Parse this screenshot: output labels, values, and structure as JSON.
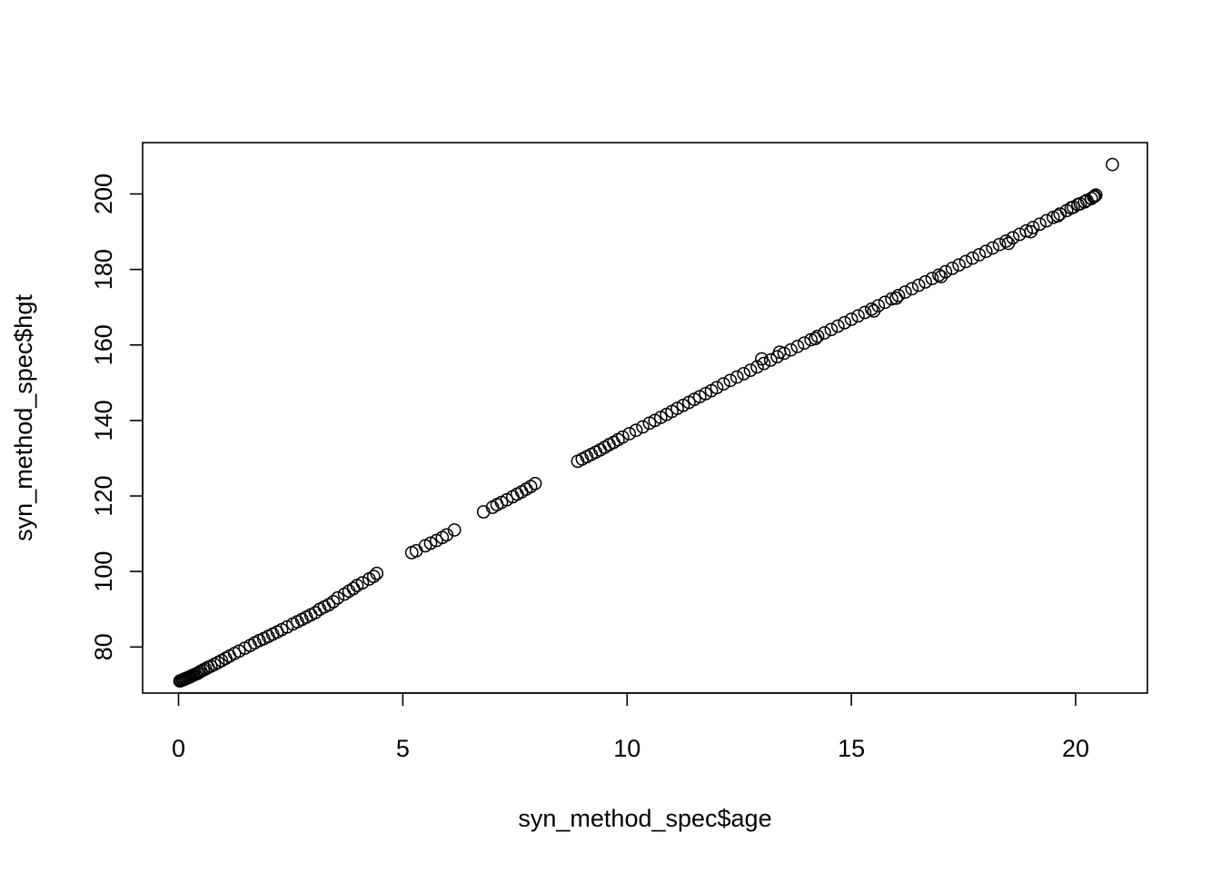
{
  "chart_data": {
    "type": "scatter",
    "title": "",
    "xlabel": "syn_method_spec$age",
    "ylabel": "syn_method_spec$hgt",
    "xlim": [
      -0.8,
      21.6
    ],
    "ylim": [
      67.8,
      213.6
    ],
    "x_ticks": [
      0,
      5,
      10,
      15,
      20
    ],
    "x_tick_labels": [
      "0",
      "5",
      "10",
      "15",
      "20"
    ],
    "y_ticks": [
      80,
      100,
      120,
      140,
      160,
      180,
      200
    ],
    "y_tick_labels": [
      "80",
      "100",
      "120",
      "140",
      "160",
      "180",
      "200"
    ],
    "grid": false,
    "marker": "open-circle",
    "point_color": "#000000",
    "points": [
      [
        0.03,
        71.0
      ],
      [
        0.06,
        71.1
      ],
      [
        0.09,
        71.3
      ],
      [
        0.12,
        71.4
      ],
      [
        0.15,
        71.6
      ],
      [
        0.18,
        71.7
      ],
      [
        0.21,
        71.9
      ],
      [
        0.24,
        72.0
      ],
      [
        0.27,
        72.2
      ],
      [
        0.3,
        72.4
      ],
      [
        0.34,
        72.6
      ],
      [
        0.38,
        72.8
      ],
      [
        0.42,
        73.0
      ],
      [
        0.46,
        73.3
      ],
      [
        0.5,
        73.6
      ],
      [
        0.55,
        73.9
      ],
      [
        0.6,
        74.2
      ],
      [
        0.66,
        74.6
      ],
      [
        0.72,
        74.9
      ],
      [
        0.8,
        75.4
      ],
      [
        0.88,
        75.9
      ],
      [
        0.96,
        76.4
      ],
      [
        1.05,
        77.0
      ],
      [
        1.14,
        77.6
      ],
      [
        1.25,
        78.3
      ],
      [
        1.35,
        78.9
      ],
      [
        1.48,
        79.7
      ],
      [
        1.6,
        80.4
      ],
      [
        1.7,
        81.1
      ],
      [
        1.8,
        81.7
      ],
      [
        1.9,
        82.2
      ],
      [
        2.0,
        82.8
      ],
      [
        2.1,
        83.4
      ],
      [
        2.2,
        84.0
      ],
      [
        2.3,
        84.6
      ],
      [
        2.42,
        85.3
      ],
      [
        2.55,
        86.1
      ],
      [
        2.65,
        86.7
      ],
      [
        2.75,
        87.3
      ],
      [
        2.85,
        87.9
      ],
      [
        2.95,
        88.5
      ],
      [
        3.05,
        89.1
      ],
      [
        3.15,
        90.0
      ],
      [
        3.25,
        90.6
      ],
      [
        3.35,
        91.2
      ],
      [
        3.45,
        92.0
      ],
      [
        3.55,
        93.0
      ],
      [
        3.7,
        94.0
      ],
      [
        3.8,
        94.8
      ],
      [
        3.9,
        95.5
      ],
      [
        3.98,
        96.3
      ],
      [
        4.1,
        97.0
      ],
      [
        4.25,
        98.0
      ],
      [
        4.35,
        98.7
      ],
      [
        4.42,
        99.5
      ],
      [
        5.2,
        105.0
      ],
      [
        5.3,
        105.5
      ],
      [
        5.5,
        106.8
      ],
      [
        5.62,
        107.5
      ],
      [
        5.75,
        108.2
      ],
      [
        5.88,
        109.0
      ],
      [
        5.98,
        109.7
      ],
      [
        6.15,
        111.0
      ],
      [
        6.8,
        115.8
      ],
      [
        7.0,
        117.0
      ],
      [
        7.1,
        117.7
      ],
      [
        7.2,
        118.3
      ],
      [
        7.32,
        119.0
      ],
      [
        7.45,
        119.8
      ],
      [
        7.55,
        120.5
      ],
      [
        7.65,
        121.1
      ],
      [
        7.75,
        121.8
      ],
      [
        7.85,
        122.5
      ],
      [
        7.95,
        123.3
      ],
      [
        8.9,
        129.2
      ],
      [
        9.0,
        129.8
      ],
      [
        9.1,
        130.4
      ],
      [
        9.2,
        131.0
      ],
      [
        9.3,
        131.6
      ],
      [
        9.4,
        132.2
      ],
      [
        9.5,
        132.9
      ],
      [
        9.6,
        133.6
      ],
      [
        9.7,
        134.2
      ],
      [
        9.8,
        134.9
      ],
      [
        9.9,
        135.6
      ],
      [
        10.05,
        136.5
      ],
      [
        10.2,
        137.4
      ],
      [
        10.35,
        138.3
      ],
      [
        10.5,
        139.3
      ],
      [
        10.62,
        140.0
      ],
      [
        10.75,
        140.8
      ],
      [
        10.88,
        141.6
      ],
      [
        11.0,
        142.4
      ],
      [
        11.12,
        143.2
      ],
      [
        11.25,
        144.0
      ],
      [
        11.38,
        144.8
      ],
      [
        11.5,
        145.6
      ],
      [
        11.62,
        146.3
      ],
      [
        11.75,
        147.1
      ],
      [
        11.88,
        147.9
      ],
      [
        12.0,
        148.7
      ],
      [
        12.15,
        149.7
      ],
      [
        12.3,
        150.6
      ],
      [
        12.45,
        151.5
      ],
      [
        12.6,
        152.4
      ],
      [
        12.75,
        153.3
      ],
      [
        12.9,
        154.2
      ],
      [
        13.05,
        155.1
      ],
      [
        13.2,
        156.0
      ],
      [
        13.35,
        156.9
      ],
      [
        13.5,
        157.8
      ],
      [
        13.65,
        158.7
      ],
      [
        13.8,
        159.6
      ],
      [
        13.95,
        160.5
      ],
      [
        14.1,
        161.4
      ],
      [
        14.25,
        162.3
      ],
      [
        14.4,
        163.2
      ],
      [
        14.55,
        164.1
      ],
      [
        14.7,
        165.0
      ],
      [
        14.85,
        165.9
      ],
      [
        15.0,
        166.8
      ],
      [
        15.15,
        167.7
      ],
      [
        15.3,
        168.6
      ],
      [
        15.45,
        169.5
      ],
      [
        15.6,
        170.4
      ],
      [
        15.75,
        171.3
      ],
      [
        15.9,
        172.2
      ],
      [
        16.05,
        173.1
      ],
      [
        16.2,
        174.0
      ],
      [
        16.35,
        174.9
      ],
      [
        16.5,
        175.8
      ],
      [
        16.65,
        176.7
      ],
      [
        16.8,
        177.6
      ],
      [
        16.95,
        178.5
      ],
      [
        17.1,
        179.4
      ],
      [
        17.25,
        180.3
      ],
      [
        17.4,
        181.2
      ],
      [
        17.55,
        182.1
      ],
      [
        17.7,
        183.0
      ],
      [
        17.85,
        183.9
      ],
      [
        18.0,
        184.8
      ],
      [
        18.15,
        185.7
      ],
      [
        18.3,
        186.6
      ],
      [
        18.45,
        187.5
      ],
      [
        18.6,
        188.4
      ],
      [
        18.75,
        189.3
      ],
      [
        18.9,
        190.2
      ],
      [
        19.05,
        191.1
      ],
      [
        19.2,
        192.0
      ],
      [
        19.35,
        192.9
      ],
      [
        19.5,
        193.8
      ],
      [
        19.65,
        194.7
      ],
      [
        19.8,
        195.6
      ],
      [
        19.95,
        196.5
      ],
      [
        20.1,
        197.4
      ],
      [
        20.25,
        198.3
      ],
      [
        20.4,
        199.2
      ],
      [
        20.45,
        199.7
      ],
      [
        13.0,
        156.3
      ],
      [
        13.4,
        158.1
      ],
      [
        14.2,
        161.7
      ],
      [
        15.5,
        169.0
      ],
      [
        16.0,
        172.4
      ],
      [
        17.0,
        178.1
      ],
      [
        18.5,
        186.9
      ],
      [
        19.0,
        190.0
      ],
      [
        19.6,
        194.2
      ],
      [
        19.9,
        196.3
      ],
      [
        20.05,
        197.2
      ],
      [
        20.2,
        197.9
      ],
      [
        20.35,
        198.8
      ],
      [
        20.42,
        199.4
      ],
      [
        20.82,
        207.8
      ]
    ]
  }
}
